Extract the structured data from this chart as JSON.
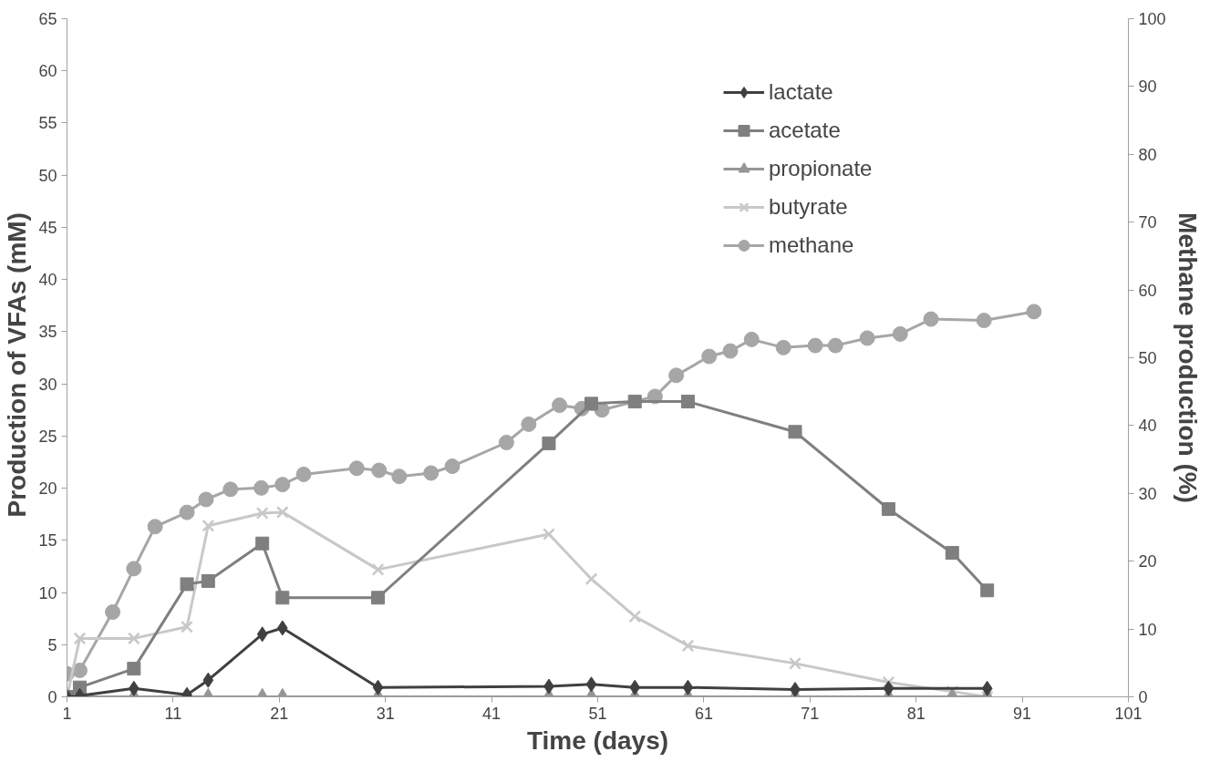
{
  "chart_data": {
    "type": "line",
    "xlabel": "Time (days)",
    "ylabel": "Production  of VFAs  (mM)",
    "y2label": "Methane production (%)",
    "xlim": [
      1,
      101
    ],
    "xticks": [
      1,
      11,
      21,
      31,
      41,
      51,
      61,
      71,
      81,
      91,
      101
    ],
    "ylim": [
      0,
      65
    ],
    "yticks": [
      0,
      5,
      10,
      15,
      20,
      25,
      30,
      35,
      40,
      45,
      50,
      55,
      60,
      65
    ],
    "y2lim": [
      0,
      100
    ],
    "y2ticks": [
      0,
      10,
      20,
      30,
      40,
      50,
      60,
      70,
      80,
      90,
      100
    ],
    "grid": false,
    "legend": "top right",
    "line_style": "solid",
    "x": [
      1.0,
      2.2,
      7.3,
      12.3,
      14.3,
      19.4,
      21.3,
      30.3,
      46.4,
      50.4,
      54.5,
      59.5,
      69.6,
      78.4,
      84.4,
      87.7
    ],
    "series": [
      {
        "name": "lactate",
        "color": "#404040",
        "marker": "diamond",
        "values": [
          0,
          0.1,
          0.8,
          0.2,
          1.6,
          6.0,
          6.6,
          0.9,
          1.0,
          1.2,
          0.9,
          0.9,
          0.7,
          0.8,
          null,
          0.8
        ]
      },
      {
        "name": "acetate",
        "color": "#7f7f7f",
        "marker": "square",
        "values": [
          0,
          0.9,
          2.7,
          10.8,
          11.1,
          14.7,
          9.5,
          9.5,
          24.3,
          28.1,
          28.3,
          28.3,
          25.4,
          18.0,
          13.8,
          10.2
        ]
      },
      {
        "name": "propionate",
        "color": "#969696",
        "marker": "triangle",
        "values": [
          0,
          0,
          0,
          0,
          0,
          0,
          0,
          0,
          0,
          0,
          0,
          0,
          0,
          0,
          0,
          0
        ]
      },
      {
        "name": "butyrate",
        "color": "#c8c8c8",
        "marker": "cross",
        "values": [
          0,
          5.6,
          5.6,
          6.7,
          16.4,
          17.6,
          17.7,
          12.2,
          15.6,
          11.3,
          7.7,
          4.9,
          3.2,
          1.4,
          0.5,
          0
        ]
      },
      {
        "name": "methane",
        "color": "#a6a6a6",
        "marker": "circle",
        "axis": "y2",
        "x": [
          1.0,
          2.2,
          5.3,
          7.3,
          9.3,
          12.3,
          14.1,
          16.4,
          19.3,
          21.3,
          23.3,
          28.3,
          30.4,
          32.3,
          35.3,
          37.3,
          42.4,
          44.5,
          47.4,
          49.5,
          51.4,
          56.4,
          58.4,
          61.5,
          63.5,
          65.5,
          68.5,
          71.5,
          73.4,
          76.4,
          79.5,
          82.4,
          87.4,
          92.1
        ],
        "values": [
          3.4,
          3.9,
          12.5,
          18.9,
          25.1,
          27.2,
          29.1,
          30.6,
          30.8,
          31.3,
          32.8,
          33.7,
          33.4,
          32.5,
          33.0,
          34.0,
          37.5,
          40.2,
          43.0,
          42.5,
          42.3,
          44.3,
          47.4,
          50.2,
          51.0,
          52.7,
          51.5,
          51.8,
          51.8,
          52.9,
          53.5,
          55.7,
          55.5,
          56.8
        ]
      }
    ]
  }
}
